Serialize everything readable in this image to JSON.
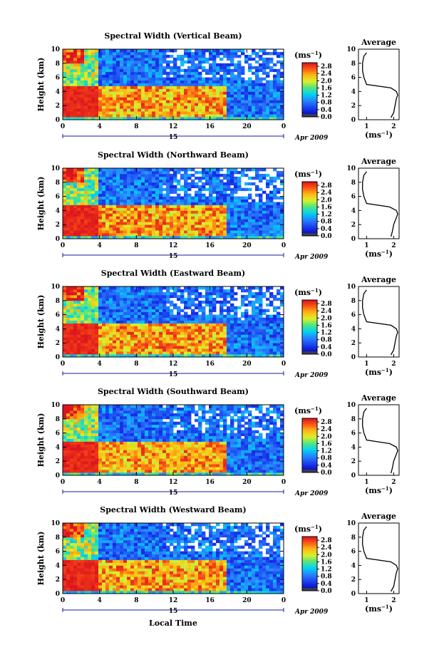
{
  "figure": {
    "xlabel": "Local Time",
    "date_label": "Apr 2009",
    "day_label": "15",
    "colorbar_unit": "(ms",
    "avg_title": "Average",
    "avg_unit": "(ms"
  },
  "chart_data": [
    {
      "type": "heatmap",
      "title": "Spectral Width (Vertical Beam)",
      "ylabel": "Height (km)",
      "x_ticks": [
        "0",
        "4",
        "8",
        "12",
        "16",
        "20",
        "0"
      ],
      "y_ticks": [
        "0",
        "2",
        "4",
        "6",
        "8",
        "10"
      ],
      "xlim": [
        0,
        24
      ],
      "ylim": [
        0,
        10
      ],
      "colorbar": {
        "ticks": [
          "0.0",
          "0.4",
          "0.8",
          "1.2",
          "1.6",
          "2.0",
          "2.4",
          "2.8"
        ],
        "range": [
          0,
          3.0
        ]
      },
      "avg_x_ticks": [
        "1",
        "2"
      ],
      "avg_y_ticks": [
        "0",
        "2",
        "4",
        "6",
        "8",
        "10"
      ],
      "average_profile": {
        "height": [
          0.3,
          1.0,
          2.0,
          3.0,
          3.5,
          4.0,
          4.5,
          5.0,
          5.5,
          6.0,
          7.0,
          8.0,
          9.0,
          9.5
        ],
        "width": [
          1.9,
          2.0,
          2.05,
          2.1,
          2.15,
          2.1,
          1.9,
          1.0,
          0.95,
          0.9,
          0.85,
          0.85,
          0.9,
          1.0
        ]
      }
    },
    {
      "type": "heatmap",
      "title": "Spectral Width (Northward Beam)",
      "ylabel": "Height (km)",
      "x_ticks": [
        "0",
        "4",
        "8",
        "12",
        "16",
        "20",
        "0"
      ],
      "y_ticks": [
        "0",
        "2",
        "4",
        "6",
        "8",
        "10"
      ],
      "xlim": [
        0,
        24
      ],
      "ylim": [
        0,
        10
      ],
      "colorbar": {
        "ticks": [
          "0.0",
          "0.4",
          "0.8",
          "1.2",
          "1.6",
          "2.0",
          "2.4",
          "2.8"
        ],
        "range": [
          0,
          3.0
        ]
      },
      "avg_x_ticks": [
        "1",
        "2"
      ],
      "avg_y_ticks": [
        "0",
        "2",
        "4",
        "6",
        "8",
        "10"
      ],
      "average_profile": {
        "height": [
          0.3,
          1.0,
          2.0,
          3.0,
          3.5,
          4.0,
          4.5,
          5.0,
          5.5,
          6.0,
          7.0,
          8.0,
          9.0,
          9.5
        ],
        "width": [
          1.9,
          1.95,
          2.0,
          2.1,
          2.15,
          2.1,
          1.85,
          1.0,
          0.95,
          0.9,
          0.85,
          0.85,
          0.9,
          1.0
        ]
      }
    },
    {
      "type": "heatmap",
      "title": "Spectral Width (Eastward Beam)",
      "ylabel": "Height (km)",
      "x_ticks": [
        "0",
        "4",
        "8",
        "12",
        "16",
        "20",
        "0"
      ],
      "y_ticks": [
        "0",
        "2",
        "4",
        "6",
        "8",
        "10"
      ],
      "xlim": [
        0,
        24
      ],
      "ylim": [
        0,
        10
      ],
      "colorbar": {
        "ticks": [
          "0.0",
          "0.4",
          "0.8",
          "1.2",
          "1.6",
          "2.0",
          "2.4",
          "2.8"
        ],
        "range": [
          0,
          3.0
        ]
      },
      "avg_x_ticks": [
        "1",
        "2"
      ],
      "avg_y_ticks": [
        "0",
        "2",
        "4",
        "6",
        "8",
        "10"
      ],
      "average_profile": {
        "height": [
          0.3,
          1.0,
          2.0,
          3.0,
          3.5,
          4.0,
          4.5,
          5.0,
          5.5,
          6.0,
          7.0,
          8.0,
          9.0,
          9.5
        ],
        "width": [
          1.9,
          2.0,
          2.05,
          2.1,
          2.15,
          2.1,
          1.9,
          1.0,
          0.95,
          0.9,
          0.85,
          0.85,
          0.9,
          1.0
        ]
      }
    },
    {
      "type": "heatmap",
      "title": "Spectral Width (Southward Beam)",
      "ylabel": "Height (km)",
      "x_ticks": [
        "0",
        "4",
        "8",
        "12",
        "16",
        "20",
        "0"
      ],
      "y_ticks": [
        "0",
        "2",
        "4",
        "6",
        "8",
        "10"
      ],
      "xlim": [
        0,
        24
      ],
      "ylim": [
        0,
        10
      ],
      "colorbar": {
        "ticks": [
          "0.0",
          "0.4",
          "0.8",
          "1.2",
          "1.6",
          "2.0",
          "2.4",
          "2.8"
        ],
        "range": [
          0,
          3.0
        ]
      },
      "avg_x_ticks": [
        "1",
        "2"
      ],
      "avg_y_ticks": [
        "0",
        "2",
        "4",
        "6",
        "8",
        "10"
      ],
      "average_profile": {
        "height": [
          0.3,
          1.0,
          2.0,
          3.0,
          3.5,
          4.0,
          4.5,
          5.0,
          5.5,
          6.0,
          7.0,
          8.0,
          9.0,
          9.5
        ],
        "width": [
          1.9,
          1.95,
          2.0,
          2.1,
          2.15,
          2.1,
          1.85,
          1.0,
          0.95,
          0.9,
          0.85,
          0.85,
          0.9,
          1.0
        ]
      }
    },
    {
      "type": "heatmap",
      "title": "Spectral Width (Westward Beam)",
      "ylabel": "Height (km)",
      "x_ticks": [
        "0",
        "4",
        "8",
        "12",
        "16",
        "20",
        "0"
      ],
      "y_ticks": [
        "0",
        "2",
        "4",
        "6",
        "8",
        "10"
      ],
      "xlim": [
        0,
        24
      ],
      "ylim": [
        0,
        10
      ],
      "colorbar": {
        "ticks": [
          "0.0",
          "0.4",
          "0.8",
          "1.2",
          "1.6",
          "2.0",
          "2.4",
          "2.8"
        ],
        "range": [
          0,
          3.0
        ]
      },
      "avg_x_ticks": [
        "1",
        "2"
      ],
      "avg_y_ticks": [
        "0",
        "2",
        "4",
        "6",
        "8",
        "10"
      ],
      "average_profile": {
        "height": [
          0.3,
          1.0,
          2.0,
          3.0,
          3.5,
          4.0,
          4.5,
          5.0,
          5.5,
          6.0,
          7.0,
          8.0,
          9.0,
          9.5
        ],
        "width": [
          1.9,
          2.0,
          2.05,
          2.1,
          2.15,
          2.1,
          1.9,
          1.0,
          0.95,
          0.9,
          0.85,
          0.85,
          0.9,
          1.0
        ]
      }
    }
  ]
}
